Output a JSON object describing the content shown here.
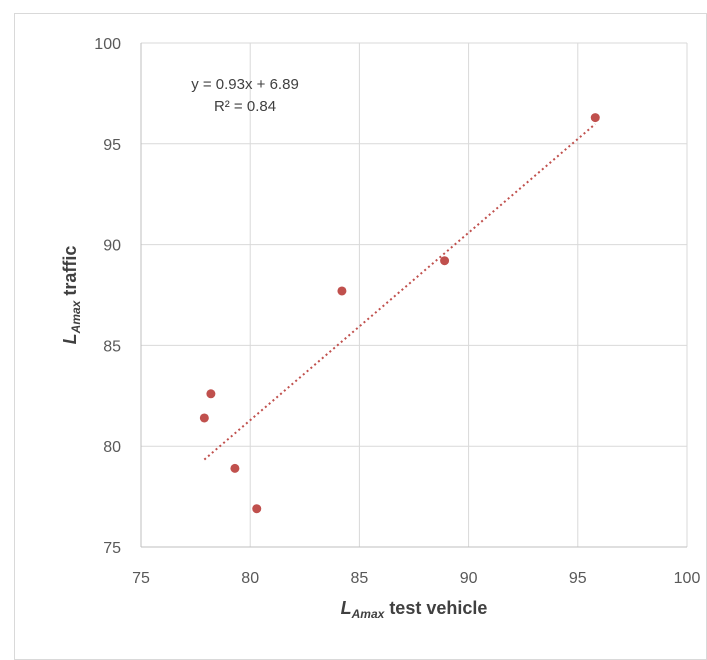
{
  "chart_data": {
    "type": "scatter",
    "x": [
      77.9,
      78.2,
      79.3,
      80.3,
      84.2,
      88.9,
      95.8
    ],
    "y": [
      81.4,
      82.6,
      78.9,
      76.9,
      87.7,
      89.2,
      96.3
    ],
    "xlim": [
      75,
      100
    ],
    "ylim": [
      75,
      100
    ],
    "xticks": [
      "75",
      "80",
      "85",
      "90",
      "95",
      "100"
    ],
    "yticks": [
      "75",
      "80",
      "85",
      "90",
      "95",
      "100"
    ],
    "xlabel": {
      "main": "L",
      "sub": "Amax",
      "rest": " test vehicle"
    },
    "ylabel": {
      "main": "L",
      "sub": "Amax",
      "rest": " traffic"
    },
    "trendline": {
      "type": "linear",
      "slope": 0.93,
      "intercept": 6.89,
      "x_range": [
        77.9,
        95.8
      ],
      "style": "dotted"
    },
    "equation": "y = 0.93x + 6.89",
    "r_squared": "R² = 0.84",
    "grid": true,
    "colors": {
      "marker": "#c0504d",
      "trendline": "#c0504d",
      "grid": "#d9d9d9",
      "axis": "#bfbfbf"
    }
  }
}
